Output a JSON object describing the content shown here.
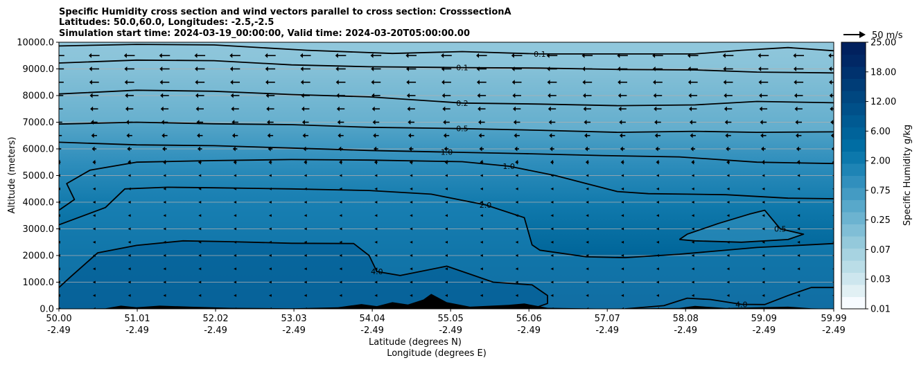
{
  "chart_data": {
    "type": "heatmap",
    "title_lines": [
      "Specific Humidity cross section and wind vectors parallel to cross section: CrosssectionA",
      "Latitudes: 50.0,60.0, Longitudes: -2.5,-2.5",
      "Simulation start time: 2024-03-19_00:00:00, Valid time: 2024-03-20T05:00:00.00"
    ],
    "ylabel": "Altitude (meters)",
    "xlabel_lines": [
      "Latitude (degrees N)",
      "Longitude (degrees E)"
    ],
    "ylim": [
      0,
      10000
    ],
    "y_ticks": [
      0,
      1000,
      2000,
      3000,
      4000,
      5000,
      6000,
      7000,
      8000,
      9000,
      10000
    ],
    "y_tick_labels": [
      "0.0",
      "1000.0",
      "2000.0",
      "3000.0",
      "4000.0",
      "5000.0",
      "6000.0",
      "7000.0",
      "8000.0",
      "9000.0",
      "10000.0"
    ],
    "x_range": [
      50.0,
      59.99
    ],
    "x_ticks": [
      {
        "lat": "50.00",
        "lon": "-2.49"
      },
      {
        "lat": "51.01",
        "lon": "-2.49"
      },
      {
        "lat": "52.02",
        "lon": "-2.49"
      },
      {
        "lat": "53.03",
        "lon": "-2.49"
      },
      {
        "lat": "54.04",
        "lon": "-2.49"
      },
      {
        "lat": "55.05",
        "lon": "-2.49"
      },
      {
        "lat": "56.06",
        "lon": "-2.49"
      },
      {
        "lat": "57.07",
        "lon": "-2.49"
      },
      {
        "lat": "58.08",
        "lon": "-2.49"
      },
      {
        "lat": "59.09",
        "lon": "-2.49"
      },
      {
        "lat": "59.99",
        "lon": "-2.49"
      }
    ],
    "grid": "horizontal",
    "colorbar": {
      "label": "Specific Humidity g/kg",
      "levels": [
        0.01,
        0.02,
        0.03,
        0.05,
        0.07,
        0.1,
        0.25,
        0.35,
        0.5,
        0.6,
        0.75,
        1.0,
        1.5,
        2.0,
        3.0,
        4.0,
        6.0,
        8.0,
        12.0,
        15.0,
        18.0,
        20.0,
        25.0
      ],
      "tick_labels": [
        "0.01",
        "0.03",
        "0.07",
        "0.25",
        "0.75",
        "2.00",
        "6.00",
        "12.00",
        "18.00",
        "25.00"
      ],
      "tick_values": [
        0.01,
        0.03,
        0.07,
        0.25,
        0.75,
        2.0,
        6.0,
        12.0,
        18.0,
        25.0
      ],
      "colors": [
        "#f7fbff",
        "#e1f0f4",
        "#cde6ee",
        "#badde7",
        "#a7d3e1",
        "#94c9db",
        "#80bed6",
        "#6cb3d0",
        "#58a8ca",
        "#449bc3",
        "#318fbd",
        "#1e84b5",
        "#0c78ac",
        "#006da3",
        "#00639a",
        "#005a92",
        "#005089",
        "#004780",
        "#003d77",
        "#00326e",
        "#012865",
        "#01215e"
      ]
    },
    "quiver_key": {
      "label": "50 m/s",
      "value": 50
    },
    "contours": [
      {
        "level": "0.1",
        "points": [
          [
            50.0,
            9860
          ],
          [
            51.0,
            9920
          ],
          [
            52.0,
            9900
          ],
          [
            53.2,
            9700
          ],
          [
            54.3,
            9580
          ],
          [
            55.2,
            9650
          ],
          [
            56.2,
            9560
          ],
          [
            57.2,
            9560
          ],
          [
            58.2,
            9560
          ],
          [
            58.8,
            9700
          ],
          [
            59.4,
            9800
          ],
          [
            59.99,
            9680
          ]
        ]
      },
      {
        "level": "0.1",
        "points": [
          [
            50.0,
            9220
          ],
          [
            51.0,
            9330
          ],
          [
            52.0,
            9310
          ],
          [
            53.0,
            9150
          ],
          [
            54.0,
            9080
          ],
          [
            55.2,
            9050
          ],
          [
            56.2,
            9030
          ],
          [
            57.2,
            8980
          ],
          [
            58.2,
            8960
          ],
          [
            59.0,
            8880
          ],
          [
            59.99,
            8850
          ]
        ]
      },
      {
        "level": "0.2",
        "points": [
          [
            50.0,
            8060
          ],
          [
            51.0,
            8200
          ],
          [
            52.0,
            8160
          ],
          [
            53.0,
            8040
          ],
          [
            54.0,
            7950
          ],
          [
            55.2,
            7720
          ],
          [
            56.2,
            7680
          ],
          [
            57.2,
            7620
          ],
          [
            58.2,
            7650
          ],
          [
            59.0,
            7780
          ],
          [
            59.99,
            7730
          ]
        ]
      },
      {
        "level": "0.5",
        "points": [
          [
            50.0,
            6930
          ],
          [
            51.0,
            7000
          ],
          [
            52.0,
            6940
          ],
          [
            53.0,
            6910
          ],
          [
            54.0,
            6810
          ],
          [
            55.2,
            6760
          ],
          [
            56.2,
            6700
          ],
          [
            57.2,
            6620
          ],
          [
            58.2,
            6660
          ],
          [
            59.0,
            6620
          ],
          [
            59.99,
            6640
          ]
        ]
      },
      {
        "level": "1.0",
        "points": [
          [
            50.0,
            6250
          ],
          [
            51.0,
            6150
          ],
          [
            52.0,
            6120
          ],
          [
            53.0,
            6030
          ],
          [
            54.0,
            5940
          ],
          [
            55.0,
            5880
          ],
          [
            56.0,
            5820
          ],
          [
            57.0,
            5750
          ],
          [
            58.0,
            5700
          ],
          [
            59.0,
            5500
          ],
          [
            59.99,
            5450
          ]
        ]
      },
      {
        "level": "1.0",
        "points": [
          [
            50.0,
            3700
          ],
          [
            50.2,
            4100
          ],
          [
            50.1,
            4700
          ],
          [
            50.4,
            5200
          ],
          [
            51.0,
            5500
          ],
          [
            52.0,
            5560
          ],
          [
            53.0,
            5600
          ],
          [
            54.0,
            5580
          ],
          [
            55.2,
            5520
          ],
          [
            55.8,
            5350
          ],
          [
            56.4,
            5000
          ],
          [
            56.8,
            4700
          ],
          [
            57.2,
            4400
          ],
          [
            57.6,
            4320
          ],
          [
            58.1,
            4300
          ],
          [
            58.6,
            4280
          ],
          [
            59.4,
            4150
          ],
          [
            59.99,
            4130
          ]
        ]
      },
      {
        "level": "2.0",
        "points": [
          [
            50.0,
            3150
          ],
          [
            50.6,
            3800
          ],
          [
            50.85,
            4500
          ],
          [
            51.4,
            4560
          ],
          [
            52.0,
            4540
          ],
          [
            53.0,
            4500
          ],
          [
            54.0,
            4440
          ],
          [
            54.8,
            4300
          ],
          [
            55.5,
            3900
          ],
          [
            56.0,
            3420
          ],
          [
            56.1,
            2400
          ],
          [
            56.2,
            2200
          ],
          [
            56.8,
            1950
          ],
          [
            57.3,
            1920
          ],
          [
            58.0,
            2050
          ],
          [
            59.0,
            2300
          ],
          [
            59.99,
            2450
          ]
        ]
      },
      {
        "level": "0.5",
        "points": [
          [
            58.0,
            2600
          ],
          [
            58.1,
            2800
          ],
          [
            58.5,
            3200
          ],
          [
            58.9,
            3550
          ],
          [
            59.1,
            3700
          ],
          [
            59.3,
            3000
          ],
          [
            59.6,
            2800
          ],
          [
            59.4,
            2600
          ],
          [
            58.8,
            2500
          ],
          [
            58.2,
            2550
          ],
          [
            58.0,
            2600
          ]
        ]
      },
      {
        "level": "4.0",
        "points": [
          [
            50.0,
            800
          ],
          [
            50.15,
            1200
          ],
          [
            50.5,
            2100
          ],
          [
            51.0,
            2380
          ],
          [
            51.6,
            2550
          ],
          [
            52.2,
            2520
          ],
          [
            53.0,
            2460
          ],
          [
            53.8,
            2450
          ],
          [
            54.0,
            2000
          ],
          [
            54.1,
            1400
          ],
          [
            54.4,
            1250
          ],
          [
            55.0,
            1600
          ],
          [
            55.3,
            1300
          ],
          [
            55.6,
            1000
          ],
          [
            56.1,
            900
          ],
          [
            56.3,
            500
          ],
          [
            56.3,
            200
          ],
          [
            56.1,
            0
          ]
        ]
      },
      {
        "level": "4.0",
        "points": [
          [
            57.3,
            0
          ],
          [
            57.8,
            120
          ],
          [
            58.1,
            400
          ],
          [
            58.4,
            350
          ],
          [
            58.8,
            170
          ],
          [
            59.1,
            160
          ],
          [
            59.4,
            500
          ],
          [
            59.7,
            800
          ],
          [
            59.99,
            800
          ]
        ]
      }
    ],
    "terrain": [
      [
        50.0,
        0
      ],
      [
        50.6,
        20
      ],
      [
        50.8,
        120
      ],
      [
        51.0,
        60
      ],
      [
        51.3,
        120
      ],
      [
        51.7,
        80
      ],
      [
        52.2,
        40
      ],
      [
        53.0,
        20
      ],
      [
        53.6,
        60
      ],
      [
        53.9,
        180
      ],
      [
        54.1,
        100
      ],
      [
        54.3,
        250
      ],
      [
        54.5,
        160
      ],
      [
        54.7,
        350
      ],
      [
        54.8,
        560
      ],
      [
        55.0,
        250
      ],
      [
        55.3,
        80
      ],
      [
        55.8,
        150
      ],
      [
        56.0,
        200
      ],
      [
        56.3,
        40
      ],
      [
        57.0,
        10
      ],
      [
        58.0,
        30
      ],
      [
        58.2,
        110
      ],
      [
        58.6,
        30
      ],
      [
        59.4,
        80
      ],
      [
        59.7,
        20
      ],
      [
        59.99,
        0
      ]
    ],
    "wind_vectors": {
      "x_count": 23,
      "y_levels": [
        9500,
        9000,
        8500,
        8000,
        7500,
        7000,
        6500,
        6000,
        5500,
        5000,
        4500,
        4000,
        3500,
        3000,
        2500,
        2000,
        1500,
        1000,
        500,
        0
      ],
      "speed_ms_by_level": [
        26,
        24,
        23,
        21,
        19,
        16,
        14,
        11,
        8,
        6,
        5,
        5,
        4,
        4,
        4,
        4,
        3,
        2,
        2,
        1
      ]
    }
  }
}
